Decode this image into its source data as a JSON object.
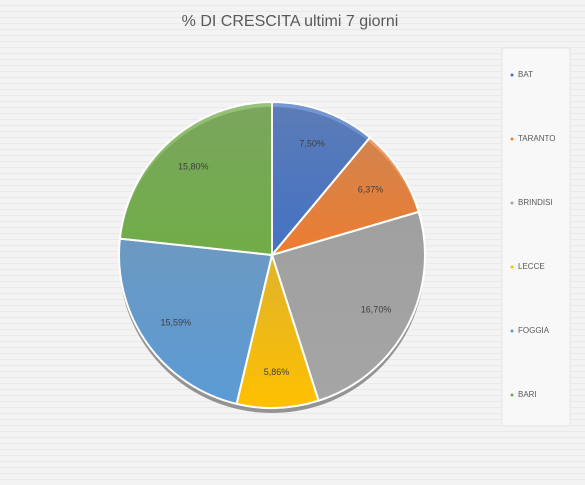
{
  "chart_data": {
    "type": "pie",
    "title": "% DI CRESCITA ultimi 7 giorni",
    "categories": [
      "BAT",
      "TARANTO",
      "BRINDISI",
      "LECCE",
      "FOGGIA",
      "BARI"
    ],
    "values": [
      7.5,
      6.37,
      16.7,
      5.86,
      15.59,
      15.8
    ],
    "value_labels": [
      "7,50%",
      "6,37%",
      "16,70%",
      "5,86%",
      "15,59%",
      "15,80%"
    ],
    "colors": [
      "#4472c4",
      "#ed7d31",
      "#a5a5a5",
      "#ffc000",
      "#5b9bd5",
      "#70ad47"
    ],
    "legend": "right"
  }
}
